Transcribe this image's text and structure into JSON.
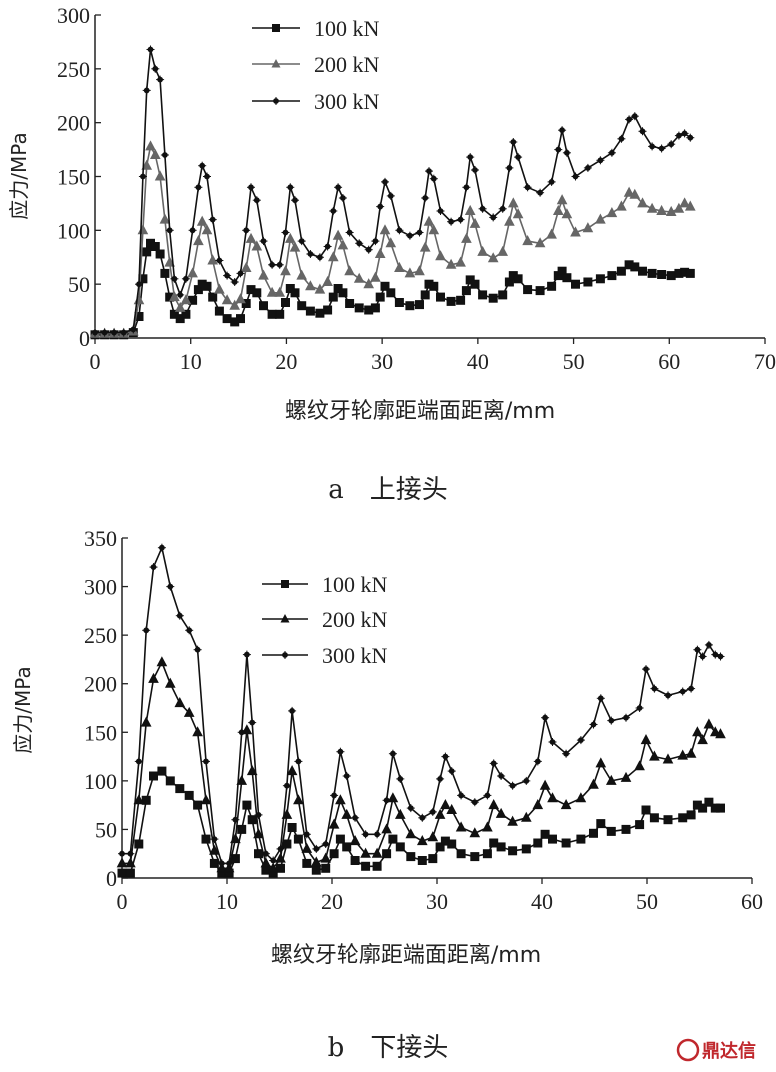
{
  "chart_data": [
    {
      "type": "line",
      "caption": "a　上接头",
      "xlabel": "螺纹牙轮廓距端面距离/mm",
      "ylabel": "应力/MPa",
      "xlim": [
        0,
        70
      ],
      "ylim": [
        0,
        300
      ],
      "xticks": [
        "0",
        "10",
        "20",
        "30",
        "40",
        "50",
        "60",
        "70"
      ],
      "yticks": [
        "0",
        "50",
        "100",
        "150",
        "200",
        "250",
        "300"
      ],
      "legend_position": "top-center",
      "series": [
        {
          "name": "100 kN",
          "marker": "square",
          "color": "#111111",
          "x": [
            0,
            1,
            2,
            3,
            4,
            4.6,
            5,
            5.4,
            5.8,
            6.3,
            6.8,
            7.3,
            7.8,
            8.3,
            8.9,
            9.5,
            10.2,
            10.8,
            11.2,
            11.7,
            12.3,
            13,
            13.8,
            14.6,
            15.2,
            15.8,
            16.3,
            16.9,
            17.6,
            18.5,
            19.3,
            19.9,
            20.4,
            20.9,
            21.6,
            22.5,
            23.5,
            24.3,
            24.9,
            25.4,
            25.9,
            26.6,
            27.6,
            28.6,
            29.3,
            29.8,
            30.3,
            30.9,
            31.8,
            32.9,
            33.9,
            34.5,
            34.9,
            35.4,
            36.1,
            37.2,
            38.2,
            38.8,
            39.2,
            39.7,
            40.5,
            41.6,
            42.6,
            43.3,
            43.7,
            44.2,
            45.2,
            46.5,
            47.7,
            48.4,
            48.8,
            49.3,
            50.2,
            51.5,
            52.8,
            54,
            55,
            55.8,
            56.4,
            57.2,
            58.2,
            59.2,
            60.2,
            61,
            61.6,
            62.2
          ],
          "y": [
            3,
            3,
            3,
            3,
            5,
            20,
            55,
            80,
            88,
            85,
            78,
            60,
            38,
            22,
            18,
            22,
            35,
            45,
            50,
            48,
            38,
            25,
            18,
            15,
            18,
            32,
            45,
            42,
            30,
            22,
            22,
            33,
            46,
            42,
            30,
            25,
            23,
            26,
            38,
            46,
            42,
            32,
            28,
            26,
            28,
            38,
            48,
            42,
            33,
            30,
            31,
            40,
            50,
            48,
            38,
            34,
            35,
            44,
            54,
            50,
            40,
            37,
            40,
            52,
            58,
            55,
            45,
            44,
            48,
            58,
            62,
            56,
            50,
            52,
            55,
            58,
            62,
            68,
            66,
            62,
            60,
            59,
            58,
            60,
            61,
            60
          ]
        },
        {
          "name": "200 kN",
          "marker": "triangle",
          "color": "#666666",
          "x": [
            0,
            1,
            2,
            3,
            4,
            4.6,
            5,
            5.4,
            5.8,
            6.3,
            6.8,
            7.3,
            7.8,
            8.3,
            8.9,
            9.5,
            10.2,
            10.8,
            11.2,
            11.7,
            12.3,
            13,
            13.8,
            14.6,
            15.2,
            15.8,
            16.3,
            16.9,
            17.6,
            18.5,
            19.3,
            19.9,
            20.4,
            20.9,
            21.6,
            22.5,
            23.5,
            24.3,
            24.9,
            25.4,
            25.9,
            26.6,
            27.6,
            28.6,
            29.3,
            29.8,
            30.3,
            30.9,
            31.8,
            32.9,
            33.9,
            34.5,
            34.9,
            35.4,
            36.1,
            37.2,
            38.2,
            38.8,
            39.2,
            39.7,
            40.5,
            41.6,
            42.6,
            43.3,
            43.7,
            44.2,
            45.2,
            46.5,
            47.7,
            48.4,
            48.8,
            49.3,
            50.2,
            51.5,
            52.8,
            54,
            55,
            55.8,
            56.4,
            57.2,
            58.2,
            59.2,
            60.2,
            61,
            61.6,
            62.2
          ],
          "y": [
            4,
            4,
            4,
            4,
            6,
            35,
            100,
            160,
            178,
            170,
            150,
            110,
            70,
            38,
            28,
            35,
            60,
            90,
            108,
            100,
            72,
            45,
            35,
            30,
            36,
            65,
            92,
            85,
            58,
            42,
            42,
            62,
            92,
            84,
            58,
            48,
            45,
            52,
            75,
            95,
            86,
            62,
            55,
            50,
            56,
            78,
            100,
            88,
            65,
            60,
            62,
            84,
            108,
            100,
            76,
            68,
            70,
            92,
            118,
            106,
            80,
            74,
            80,
            108,
            125,
            115,
            90,
            88,
            96,
            118,
            128,
            115,
            98,
            102,
            110,
            116,
            122,
            135,
            133,
            125,
            120,
            118,
            117,
            120,
            125,
            122
          ]
        },
        {
          "name": "300 kN",
          "marker": "star",
          "color": "#111111",
          "x": [
            0,
            1,
            2,
            3,
            4,
            4.6,
            5,
            5.4,
            5.8,
            6.3,
            6.8,
            7.3,
            7.8,
            8.3,
            8.9,
            9.5,
            10.2,
            10.8,
            11.2,
            11.7,
            12.3,
            13,
            13.8,
            14.6,
            15.2,
            15.8,
            16.3,
            16.9,
            17.6,
            18.5,
            19.3,
            19.9,
            20.4,
            20.9,
            21.6,
            22.5,
            23.5,
            24.3,
            24.9,
            25.4,
            25.9,
            26.6,
            27.6,
            28.6,
            29.3,
            29.8,
            30.3,
            30.9,
            31.8,
            32.9,
            33.9,
            34.5,
            34.9,
            35.4,
            36.1,
            37.2,
            38.2,
            38.8,
            39.2,
            39.7,
            40.5,
            41.6,
            42.6,
            43.3,
            43.7,
            44.2,
            45.2,
            46.5,
            47.7,
            48.4,
            48.8,
            49.3,
            50.2,
            51.5,
            52.8,
            54,
            55,
            55.8,
            56.4,
            57.2,
            58.2,
            59.2,
            60.2,
            61,
            61.6,
            62.2
          ],
          "y": [
            5,
            5,
            5,
            5,
            8,
            50,
            150,
            230,
            268,
            250,
            240,
            170,
            100,
            55,
            40,
            55,
            100,
            140,
            160,
            150,
            110,
            72,
            58,
            52,
            60,
            100,
            140,
            128,
            90,
            68,
            68,
            98,
            140,
            128,
            90,
            78,
            75,
            85,
            118,
            140,
            130,
            98,
            88,
            82,
            90,
            122,
            145,
            132,
            100,
            95,
            98,
            130,
            155,
            148,
            118,
            108,
            110,
            140,
            168,
            156,
            120,
            112,
            120,
            158,
            182,
            168,
            140,
            135,
            145,
            175,
            193,
            172,
            150,
            158,
            165,
            172,
            185,
            203,
            206,
            192,
            178,
            176,
            180,
            188,
            190,
            186
          ]
        }
      ]
    },
    {
      "type": "line",
      "caption": "b　下接头",
      "xlabel": "螺纹牙轮廓距端面距离/mm",
      "ylabel": "应力/MPa",
      "xlim": [
        0,
        60
      ],
      "ylim": [
        0,
        350
      ],
      "xticks": [
        "0",
        "10",
        "20",
        "30",
        "40",
        "50",
        "60"
      ],
      "yticks": [
        "0",
        "50",
        "100",
        "150",
        "200",
        "250",
        "300",
        "350"
      ],
      "legend_position": "top-center",
      "series": [
        {
          "name": "100 kN",
          "marker": "square",
          "color": "#111111",
          "x": [
            0,
            0.8,
            1.6,
            2.3,
            3,
            3.8,
            4.6,
            5.5,
            6.4,
            7.2,
            8,
            8.8,
            9.5,
            10.2,
            10.8,
            11.4,
            11.9,
            12.4,
            13,
            13.7,
            14.4,
            15.1,
            15.7,
            16.2,
            16.8,
            17.6,
            18.5,
            19.4,
            20.2,
            20.8,
            21.4,
            22.2,
            23.2,
            24.3,
            25.2,
            25.8,
            26.5,
            27.5,
            28.6,
            29.6,
            30.3,
            30.8,
            31.4,
            32.3,
            33.6,
            34.8,
            35.4,
            36.1,
            37.2,
            38.5,
            39.6,
            40.3,
            41,
            42.3,
            43.7,
            44.9,
            45.6,
            46.6,
            48,
            49.3,
            49.9,
            50.7,
            52,
            53.4,
            54.2,
            54.8,
            55.3,
            55.9,
            56.5,
            57
          ],
          "y": [
            5,
            5,
            35,
            80,
            105,
            110,
            100,
            92,
            85,
            75,
            40,
            15,
            5,
            5,
            20,
            50,
            75,
            60,
            25,
            8,
            5,
            10,
            35,
            52,
            40,
            15,
            8,
            10,
            25,
            40,
            32,
            18,
            12,
            12,
            25,
            40,
            32,
            22,
            18,
            20,
            32,
            38,
            35,
            25,
            22,
            25,
            36,
            32,
            28,
            30,
            36,
            45,
            40,
            36,
            40,
            46,
            56,
            48,
            50,
            55,
            70,
            62,
            60,
            62,
            65,
            75,
            72,
            78,
            72,
            72
          ]
        },
        {
          "name": "200 kN",
          "marker": "triangle",
          "color": "#111111",
          "x": [
            0,
            0.8,
            1.6,
            2.3,
            3,
            3.8,
            4.6,
            5.5,
            6.4,
            7.2,
            8,
            8.8,
            9.5,
            10.2,
            10.8,
            11.4,
            11.9,
            12.4,
            13,
            13.7,
            14.4,
            15.1,
            15.7,
            16.2,
            16.8,
            17.6,
            18.5,
            19.4,
            20.2,
            20.8,
            21.4,
            22.2,
            23.2,
            24.3,
            25.2,
            25.8,
            26.5,
            27.5,
            28.6,
            29.6,
            30.3,
            30.8,
            31.4,
            32.3,
            33.6,
            34.8,
            35.4,
            36.1,
            37.2,
            38.5,
            39.6,
            40.3,
            41,
            42.3,
            43.7,
            44.9,
            45.6,
            46.6,
            48,
            49.3,
            49.9,
            50.7,
            52,
            53.4,
            54.2,
            54.8,
            55.3,
            55.9,
            56.5,
            57
          ],
          "y": [
            15,
            15,
            80,
            160,
            205,
            222,
            200,
            180,
            170,
            150,
            80,
            28,
            10,
            10,
            40,
            100,
            152,
            110,
            45,
            15,
            10,
            20,
            65,
            110,
            80,
            30,
            16,
            20,
            55,
            80,
            65,
            38,
            25,
            25,
            50,
            82,
            65,
            45,
            38,
            42,
            65,
            75,
            70,
            52,
            46,
            52,
            75,
            66,
            58,
            62,
            75,
            95,
            82,
            75,
            82,
            96,
            118,
            100,
            103,
            115,
            142,
            125,
            122,
            126,
            128,
            150,
            142,
            158,
            150,
            148
          ]
        },
        {
          "name": "300 kN",
          "marker": "star",
          "color": "#111111",
          "x": [
            0,
            0.8,
            1.6,
            2.3,
            3,
            3.8,
            4.6,
            5.5,
            6.4,
            7.2,
            8,
            8.8,
            9.5,
            10.2,
            10.8,
            11.4,
            11.9,
            12.4,
            13,
            13.7,
            14.4,
            15.1,
            15.7,
            16.2,
            16.8,
            17.6,
            18.5,
            19.4,
            20.2,
            20.8,
            21.4,
            22.2,
            23.2,
            24.3,
            25.2,
            25.8,
            26.5,
            27.5,
            28.6,
            29.6,
            30.3,
            30.8,
            31.4,
            32.3,
            33.6,
            34.8,
            35.4,
            36.1,
            37.2,
            38.5,
            39.6,
            40.3,
            41,
            42.3,
            43.7,
            44.9,
            45.6,
            46.6,
            48,
            49.3,
            49.9,
            50.7,
            52,
            53.4,
            54.2,
            54.8,
            55.3,
            55.9,
            56.5,
            57
          ],
          "y": [
            25,
            25,
            120,
            255,
            320,
            340,
            300,
            270,
            255,
            235,
            120,
            40,
            15,
            15,
            60,
            150,
            230,
            160,
            65,
            25,
            18,
            30,
            95,
            172,
            120,
            45,
            30,
            35,
            85,
            130,
            105,
            62,
            45,
            45,
            80,
            128,
            102,
            72,
            62,
            68,
            102,
            125,
            110,
            85,
            78,
            85,
            118,
            105,
            95,
            100,
            120,
            165,
            140,
            128,
            142,
            158,
            185,
            162,
            165,
            175,
            215,
            195,
            188,
            192,
            195,
            235,
            228,
            240,
            230,
            228
          ]
        }
      ]
    }
  ],
  "watermark": "鼎达信"
}
